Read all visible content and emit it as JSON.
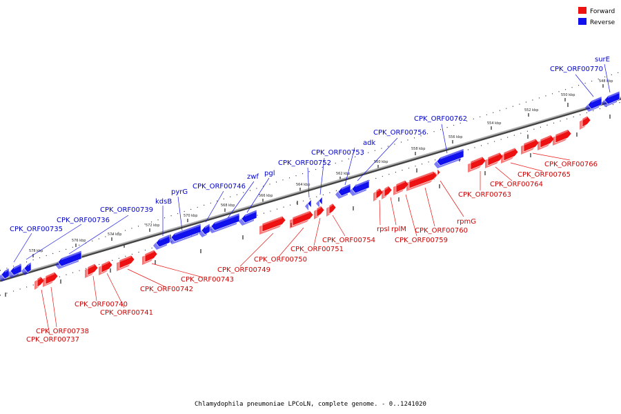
{
  "caption": "Chlamydophila pneumoniae LPCoLN, complete genome. - 0..1241020",
  "legend": [
    {
      "label": "Forward",
      "color": "#ee1111"
    },
    {
      "label": "Reverse",
      "color": "#1111ee"
    }
  ],
  "colors": {
    "forward": "#ee1111",
    "reverse": "#1111ee",
    "backbone": "#888888"
  },
  "ticks": [
    {
      "kbp": 578,
      "label": "578 kbp"
    },
    {
      "kbp": 576,
      "label": "576 kbp"
    },
    {
      "kbp": 574,
      "label": "574 kbp"
    },
    {
      "kbp": 572,
      "label": "572 kbp"
    },
    {
      "kbp": 570,
      "label": "570 kbp"
    },
    {
      "kbp": 568,
      "label": "568 kbp"
    },
    {
      "kbp": 566,
      "label": "566 kbp"
    },
    {
      "kbp": 564,
      "label": "564 kbp"
    },
    {
      "kbp": 562,
      "label": "562 kbp"
    },
    {
      "kbp": 560,
      "label": "560 kbp"
    },
    {
      "kbp": 558,
      "label": "558 kbp"
    },
    {
      "kbp": 556,
      "label": "556 kbp"
    },
    {
      "kbp": 554,
      "label": "554 kbp"
    },
    {
      "kbp": 552,
      "label": "552 kbp"
    },
    {
      "kbp": 550,
      "label": "550 kbp"
    },
    {
      "kbp": 548,
      "label": "548 kbp"
    }
  ],
  "reverse_labels": [
    "CPK_ORF00735",
    "CPK_ORF00736",
    "CPK_ORF00739",
    "kdsB",
    "pyrG",
    "CPK_ORF00746",
    "zwf",
    "pgl",
    "CPK_ORF00752",
    "CPK_ORF00753",
    "adk",
    "CPK_ORF00756",
    "CPK_ORF00762",
    "CPK_ORF00770",
    "surE"
  ],
  "forward_labels": [
    "CPK_ORF00738",
    "CPK_ORF00737",
    "CPK_ORF00740",
    "CPK_ORF00741",
    "CPK_ORF00742",
    "CPK_ORF00743",
    "CPK_ORF00749",
    "CPK_ORF00750",
    "CPK_ORF00751",
    "CPK_ORF00754",
    "rpsI",
    "rplM",
    "CPK_ORF00759",
    "CPK_ORF00760",
    "rpmG",
    "CPK_ORF00763",
    "CPK_ORF00764",
    "CPK_ORF00765",
    "CPK_ORF00766"
  ]
}
